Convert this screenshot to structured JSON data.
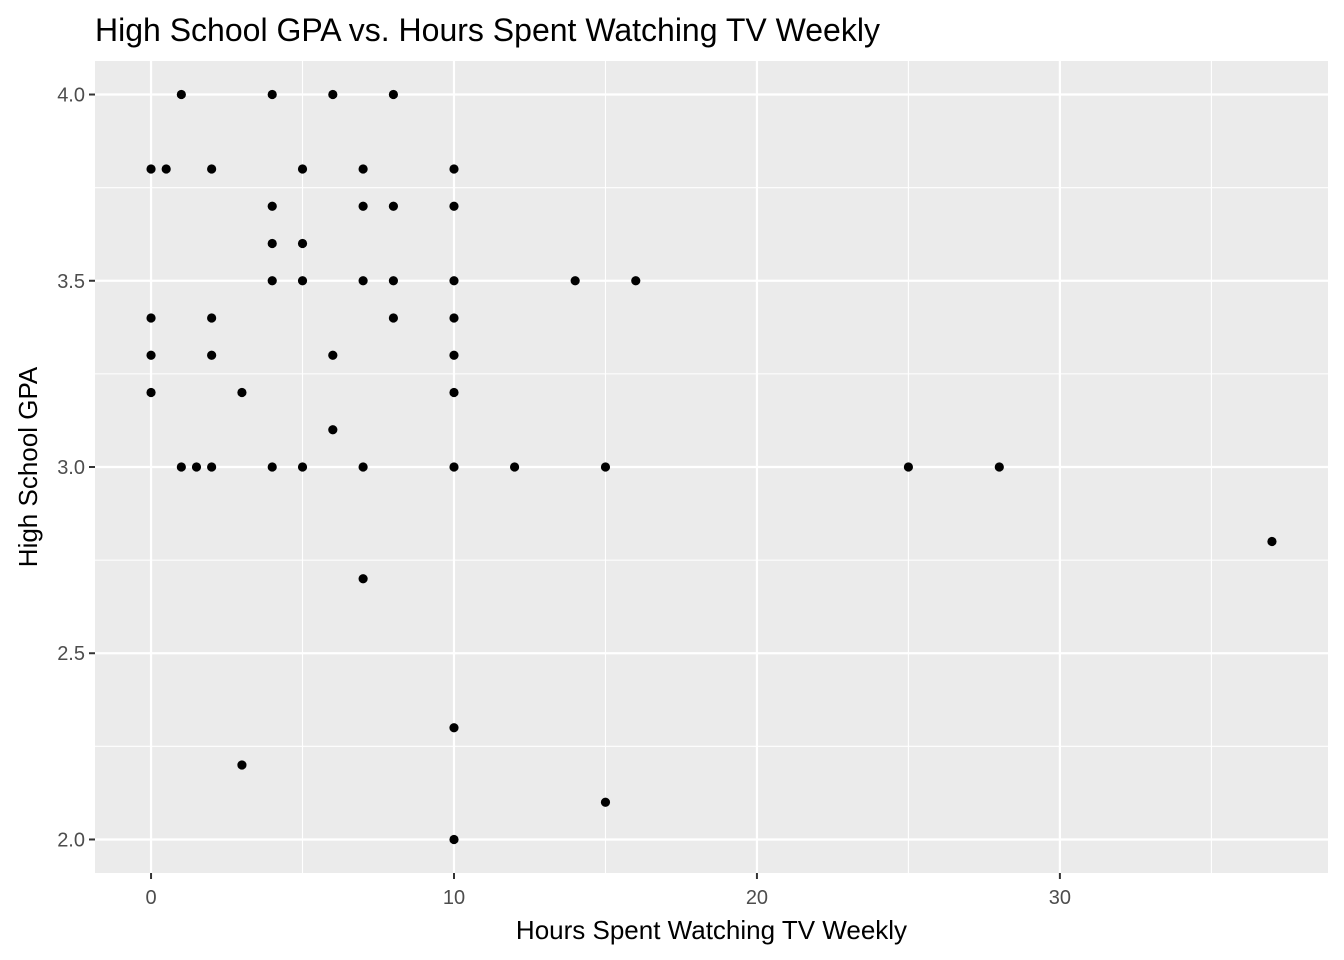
{
  "chart_data": {
    "type": "scatter",
    "title": "High School GPA vs. Hours Spent Watching TV Weekly",
    "xlabel": "Hours Spent Watching TV Weekly",
    "ylabel": "High School GPA",
    "xlim": [
      -1.85,
      38.85
    ],
    "ylim": [
      1.91,
      4.09
    ],
    "x_ticks": [
      0,
      10,
      20,
      30
    ],
    "x_tick_labels": [
      "0",
      "10",
      "20",
      "30"
    ],
    "x_minor_ticks": [
      5,
      15,
      25,
      35
    ],
    "y_ticks": [
      2.0,
      2.5,
      3.0,
      3.5,
      4.0
    ],
    "y_tick_labels": [
      "2.0",
      "2.5",
      "3.0",
      "3.5",
      "4.0"
    ],
    "y_minor_ticks": [
      2.25,
      2.75,
      3.25,
      3.75
    ],
    "grid": true,
    "legend": "none",
    "colors": {
      "panel_background": "#ebebeb",
      "grid": "#ffffff",
      "points": "#000000",
      "tick_labels": "#4d4d4d"
    },
    "points": [
      {
        "x": 0,
        "y": 3.8
      },
      {
        "x": 0,
        "y": 3.4
      },
      {
        "x": 0,
        "y": 3.3
      },
      {
        "x": 0,
        "y": 3.2
      },
      {
        "x": 0.5,
        "y": 3.8
      },
      {
        "x": 1,
        "y": 4.0
      },
      {
        "x": 1,
        "y": 3.0
      },
      {
        "x": 1.5,
        "y": 3.0
      },
      {
        "x": 2,
        "y": 3.8
      },
      {
        "x": 2,
        "y": 3.4
      },
      {
        "x": 2,
        "y": 3.3
      },
      {
        "x": 2,
        "y": 3.0
      },
      {
        "x": 3,
        "y": 3.2
      },
      {
        "x": 3,
        "y": 2.2
      },
      {
        "x": 4,
        "y": 4.0
      },
      {
        "x": 4,
        "y": 3.7
      },
      {
        "x": 4,
        "y": 3.6
      },
      {
        "x": 4,
        "y": 3.5
      },
      {
        "x": 4,
        "y": 3.0
      },
      {
        "x": 5,
        "y": 3.8
      },
      {
        "x": 5,
        "y": 3.6
      },
      {
        "x": 5,
        "y": 3.5
      },
      {
        "x": 5,
        "y": 3.0
      },
      {
        "x": 6,
        "y": 4.0
      },
      {
        "x": 6,
        "y": 3.3
      },
      {
        "x": 6,
        "y": 3.1
      },
      {
        "x": 7,
        "y": 3.8
      },
      {
        "x": 7,
        "y": 3.7
      },
      {
        "x": 7,
        "y": 3.5
      },
      {
        "x": 7,
        "y": 3.0
      },
      {
        "x": 7,
        "y": 2.7
      },
      {
        "x": 8,
        "y": 4.0
      },
      {
        "x": 8,
        "y": 3.7
      },
      {
        "x": 8,
        "y": 3.5
      },
      {
        "x": 8,
        "y": 3.4
      },
      {
        "x": 10,
        "y": 3.8
      },
      {
        "x": 10,
        "y": 3.7
      },
      {
        "x": 10,
        "y": 3.5
      },
      {
        "x": 10,
        "y": 3.4
      },
      {
        "x": 10,
        "y": 3.3
      },
      {
        "x": 10,
        "y": 3.2
      },
      {
        "x": 10,
        "y": 3.0
      },
      {
        "x": 10,
        "y": 2.3
      },
      {
        "x": 10,
        "y": 2.0
      },
      {
        "x": 12,
        "y": 3.0
      },
      {
        "x": 14,
        "y": 3.5
      },
      {
        "x": 15,
        "y": 3.0
      },
      {
        "x": 15,
        "y": 2.1
      },
      {
        "x": 16,
        "y": 3.5
      },
      {
        "x": 25,
        "y": 3.0
      },
      {
        "x": 28,
        "y": 3.0
      },
      {
        "x": 37,
        "y": 2.8
      }
    ]
  }
}
